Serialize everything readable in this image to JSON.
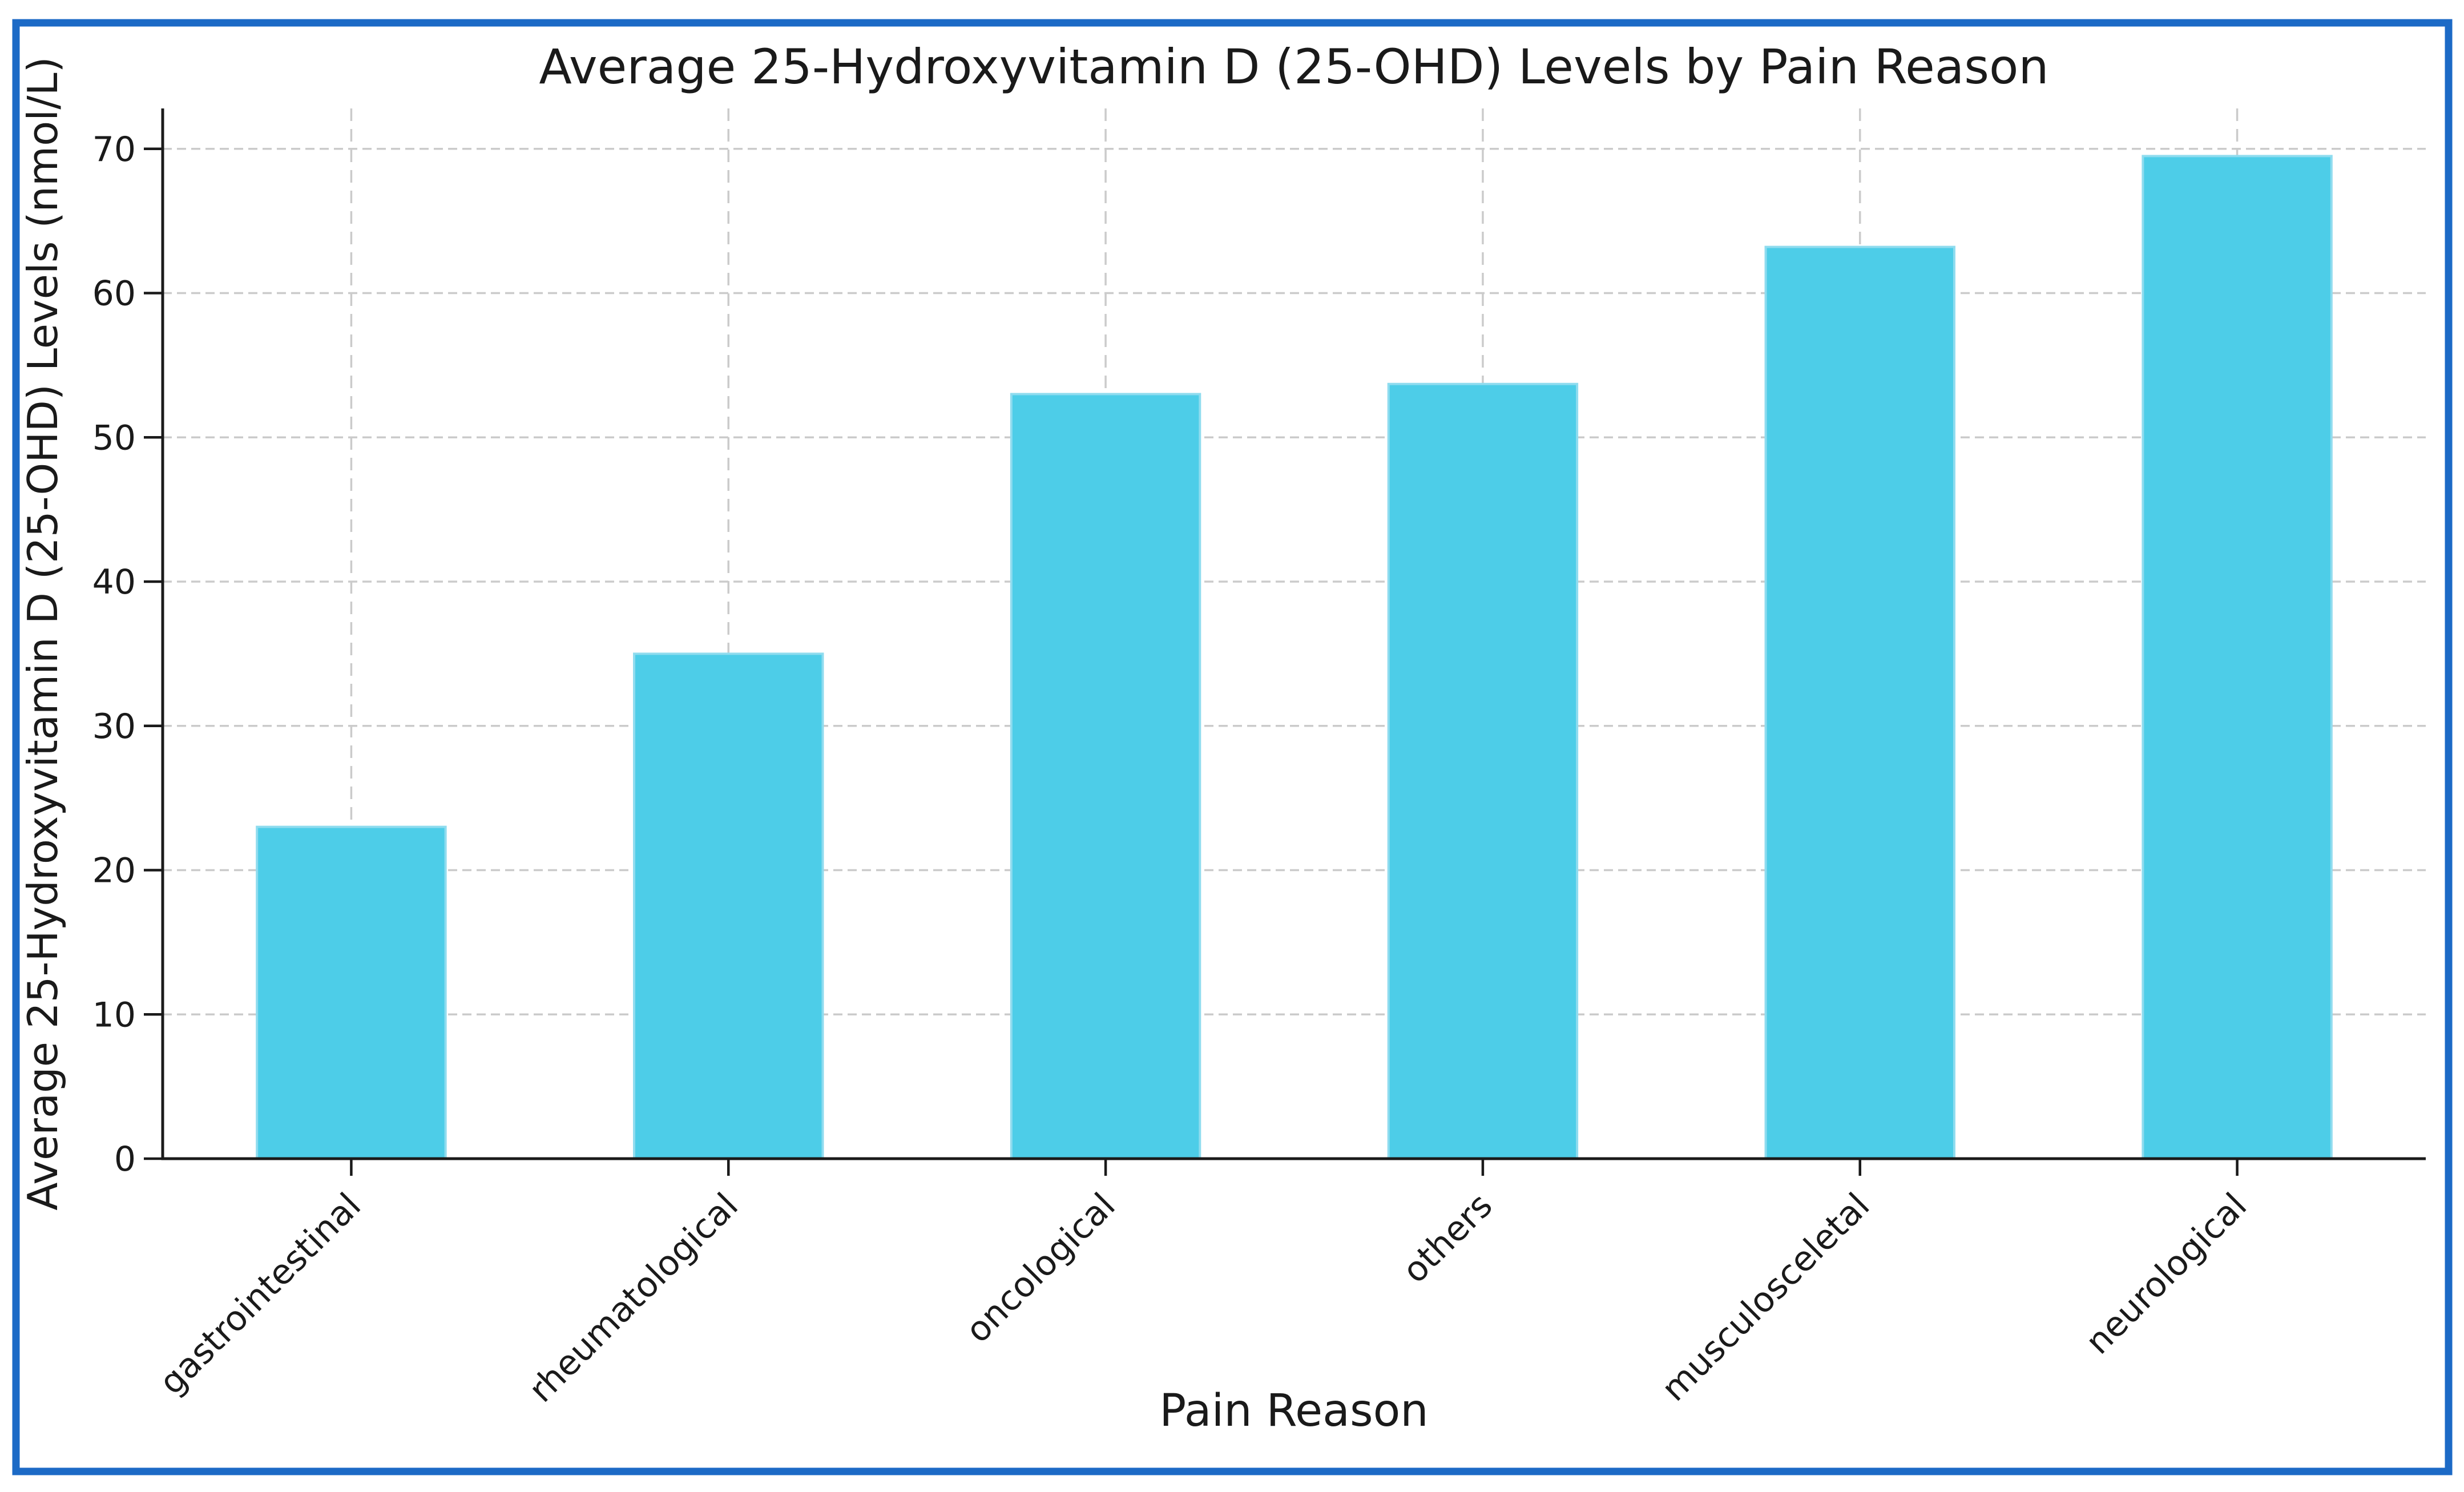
{
  "figure": {
    "frame_color": "#1C6AC6",
    "background_color": "#FFFFFF"
  },
  "chart_data": {
    "type": "bar",
    "title": "Average 25-Hydroxyvitamin D (25-OHD) Levels by Pain Reason",
    "xlabel": "Pain Reason",
    "ylabel": "Average 25-Hydroxyvitamin D (25-OHD) Levels (nmol/L)",
    "categories": [
      "gastrointestinal",
      "rheumatological",
      "oncological",
      "others",
      "musculosceletal",
      "neurological"
    ],
    "values": [
      23,
      35,
      53,
      53.7,
      63.2,
      69.5
    ],
    "yticks": [
      0,
      10,
      20,
      30,
      40,
      50,
      60,
      70
    ],
    "ylim": [
      0,
      72.8
    ],
    "x_tick_rotation_deg": 45,
    "grid": true,
    "grid_style": "dashed",
    "legend": "none",
    "bar_color": "#4DCDE8",
    "bar_edge_color": "#8FDCEF",
    "grid_color": "#CBCBCB",
    "axis_color": "#1A1A1A",
    "text_color": "#1A1A1A"
  }
}
